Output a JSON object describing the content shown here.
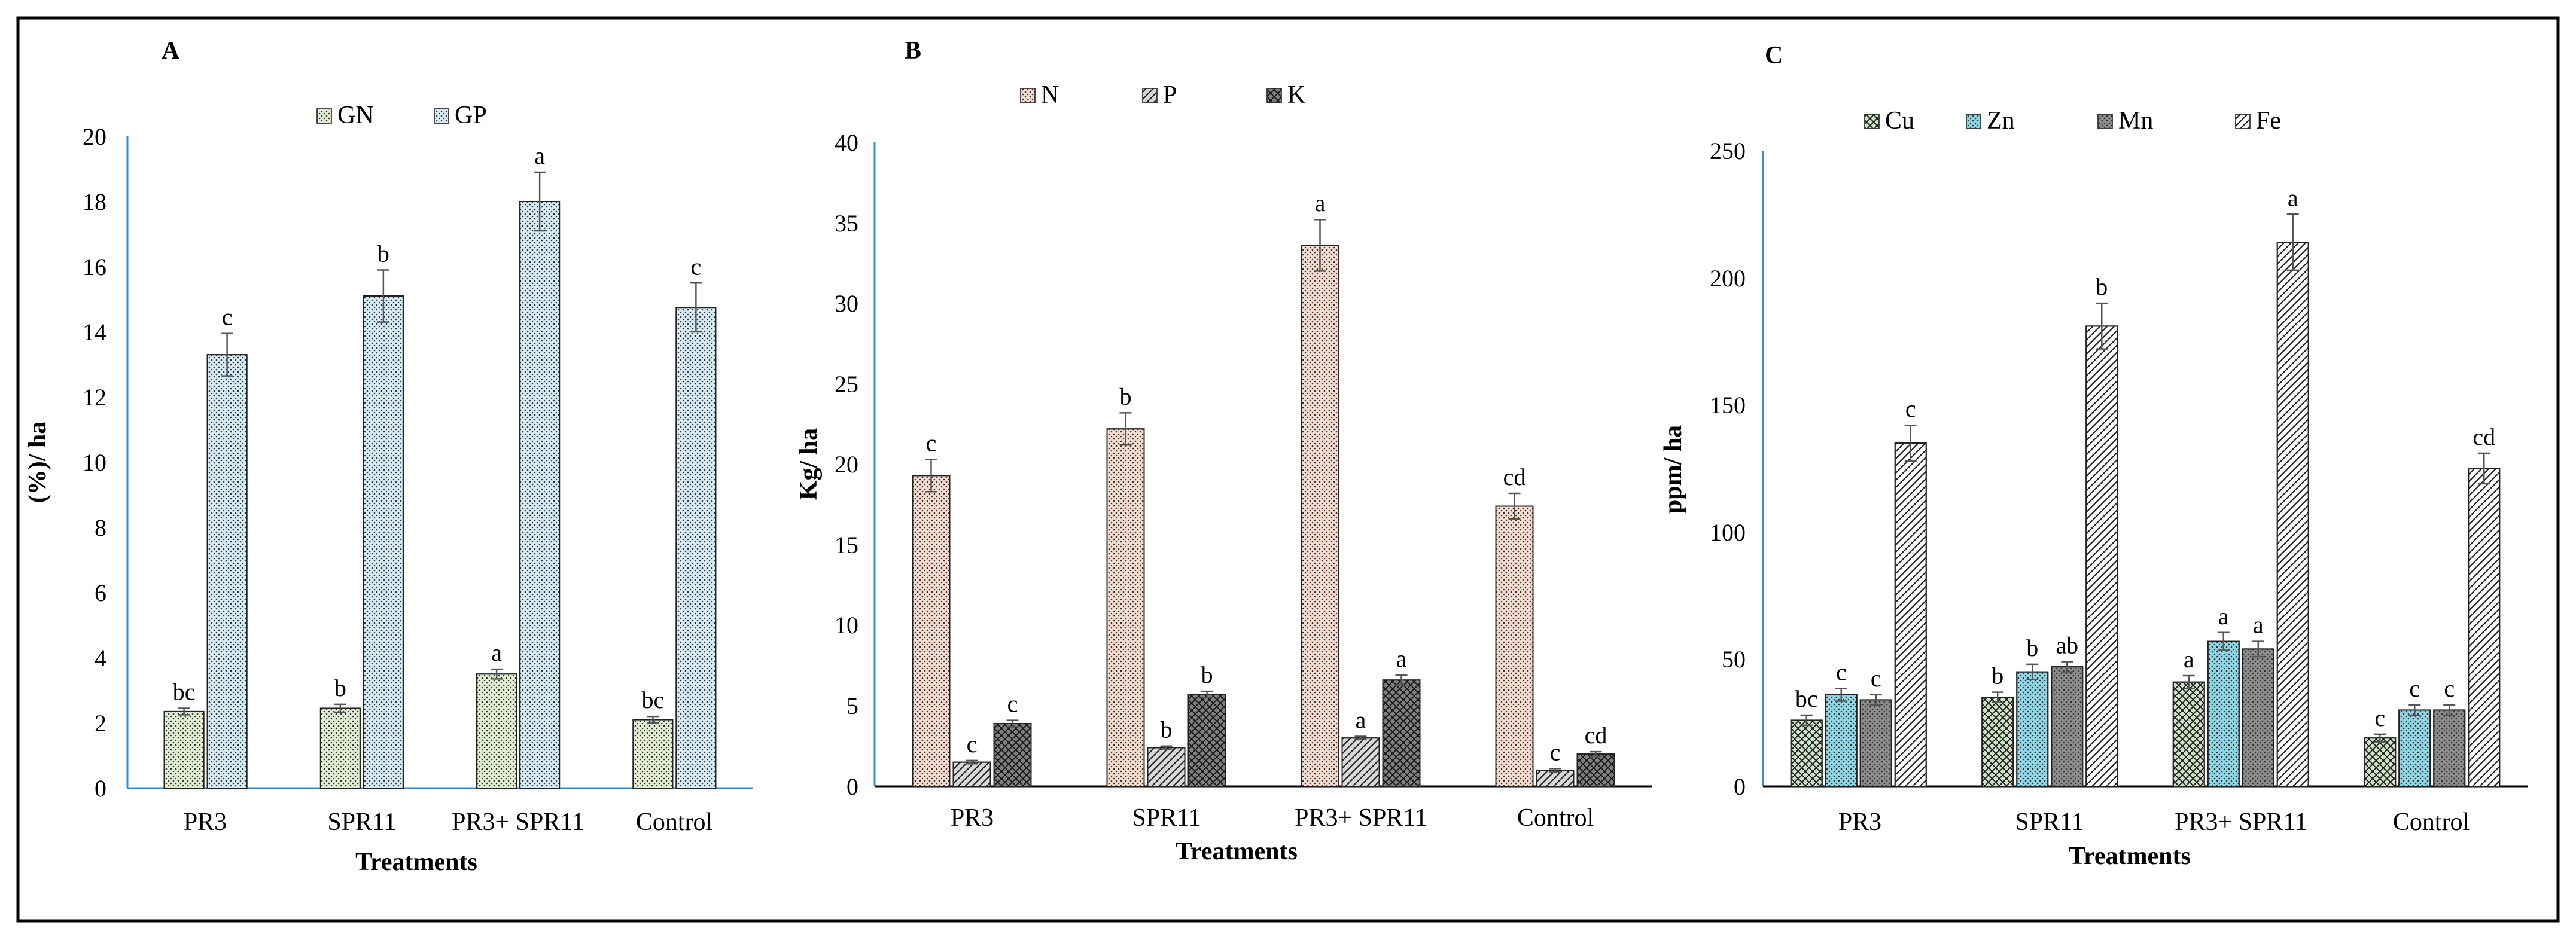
{
  "chart_data": [
    {
      "type": "bar",
      "panel_label": "A",
      "categories": [
        "PR3",
        "SPR11",
        "PR3+ SPR11",
        "Control"
      ],
      "series": [
        {
          "name": "GN",
          "values": [
            2.35,
            2.45,
            3.5,
            2.1
          ],
          "errors": [
            0.1,
            0.12,
            0.15,
            0.1
          ],
          "letters": [
            "bc",
            "b",
            "a",
            "bc"
          ],
          "color": "#e3efd2",
          "pattern": "dots"
        },
        {
          "name": "GP",
          "values": [
            13.3,
            15.1,
            18.0,
            14.75
          ],
          "errors": [
            0.65,
            0.8,
            0.9,
            0.75
          ],
          "letters": [
            "c",
            "b",
            "a",
            "c"
          ],
          "color": "#d6ecf7",
          "pattern": "dots"
        }
      ],
      "xlabel": "Treatments",
      "ylabel": "(%)/ ha",
      "ylim": [
        0,
        20
      ],
      "yticks": [
        "0",
        "2",
        "4",
        "6",
        "8",
        "10",
        "12",
        "14",
        "16",
        "18",
        "20"
      ],
      "legend_position": "top-center",
      "grid": false
    },
    {
      "type": "bar",
      "panel_label": "B",
      "categories": [
        "PR3",
        "SPR11",
        "PR3+ SPR11",
        "Control"
      ],
      "series": [
        {
          "name": "N",
          "values": [
            19.3,
            22.2,
            33.6,
            17.4
          ],
          "errors": [
            1.0,
            1.0,
            1.6,
            0.8
          ],
          "letters": [
            "c",
            "b",
            "a",
            "cd"
          ],
          "color": "#f7ddd0",
          "pattern": "dots"
        },
        {
          "name": "P",
          "values": [
            1.5,
            2.4,
            3.0,
            1.0
          ],
          "errors": [
            0.1,
            0.1,
            0.1,
            0.1
          ],
          "letters": [
            "c",
            "b",
            "a",
            "c"
          ],
          "color": "#d9d9d9",
          "pattern": "diagonal"
        },
        {
          "name": "K",
          "values": [
            3.9,
            5.7,
            6.6,
            2.0
          ],
          "errors": [
            0.2,
            0.2,
            0.3,
            0.15
          ],
          "letters": [
            "c",
            "b",
            "a",
            "cd"
          ],
          "color": "#7f7f7f",
          "pattern": "cross"
        }
      ],
      "xlabel": "Treatments",
      "ylabel": "Kg/ ha",
      "ylim": [
        0,
        40
      ],
      "yticks": [
        "0",
        "5",
        "10",
        "15",
        "20",
        "25",
        "30",
        "35",
        "40"
      ],
      "legend_position": "top-center",
      "grid": false
    },
    {
      "type": "bar",
      "panel_label": "C",
      "categories": [
        "PR3",
        "SPR11",
        "PR3+ SPR11",
        "Control"
      ],
      "series": [
        {
          "name": "Cu",
          "values": [
            26,
            35,
            41,
            19
          ],
          "errors": [
            2,
            2,
            2.5,
            1.5
          ],
          "letters": [
            "bc",
            "b",
            "a",
            "c"
          ],
          "color": "#cde2c5",
          "pattern": "cross"
        },
        {
          "name": "Zn",
          "values": [
            36,
            45,
            57,
            30
          ],
          "errors": [
            2.5,
            3,
            3.5,
            2
          ],
          "letters": [
            "c",
            "b",
            "a",
            "c"
          ],
          "color": "#8fd6e6",
          "pattern": "dots"
        },
        {
          "name": "Mn",
          "values": [
            34,
            47,
            54,
            30
          ],
          "errors": [
            2,
            2,
            3,
            2
          ],
          "letters": [
            "c",
            "ab",
            "a",
            "c"
          ],
          "color": "#8c8c8c",
          "pattern": "dots"
        },
        {
          "name": "Fe",
          "values": [
            135,
            181,
            214,
            125
          ],
          "errors": [
            7,
            9,
            11,
            6
          ],
          "letters": [
            "c",
            "b",
            "a",
            "cd"
          ],
          "color": "#ffffff",
          "pattern": "diagonal"
        }
      ],
      "xlabel": "Treatments",
      "ylabel": "ppm/ ha",
      "ylim": [
        0,
        250
      ],
      "yticks": [
        "0",
        "50",
        "100",
        "150",
        "200",
        "250"
      ],
      "legend_position": "top-center",
      "grid": false
    }
  ]
}
